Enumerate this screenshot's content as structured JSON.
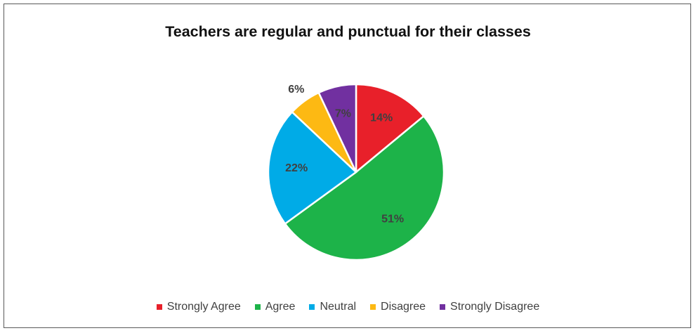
{
  "chart_data": {
    "type": "pie",
    "title": "Teachers are regular and punctual for their classes",
    "categories": [
      "Strongly Agree",
      "Agree",
      "Neutral",
      "Disagree",
      "Strongly Disagree"
    ],
    "values": [
      14,
      51,
      22,
      6,
      7
    ],
    "labels": [
      "14%",
      "51%",
      "22%",
      "6%",
      "7%"
    ],
    "colors": [
      "#e8202a",
      "#1db349",
      "#00abe7",
      "#fdb913",
      "#7130a0"
    ],
    "legend_position": "bottom"
  }
}
